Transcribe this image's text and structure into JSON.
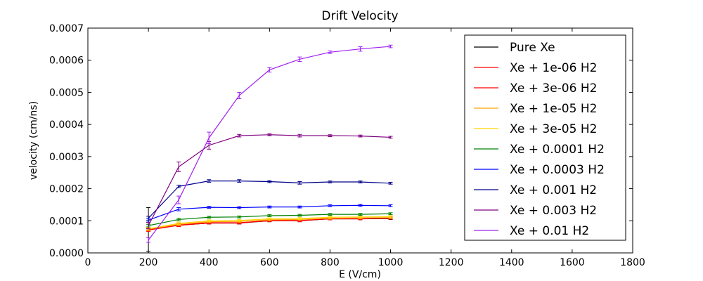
{
  "chart_data": {
    "type": "line",
    "title": "Drift Velocity",
    "xlabel": "E (V/cm)",
    "ylabel": "velocity (cm/ns)",
    "xlim": [
      0,
      1800
    ],
    "ylim": [
      0,
      0.0007
    ],
    "xticks": [
      "0",
      "200",
      "400",
      "600",
      "800",
      "1000",
      "1200",
      "1400",
      "1600",
      "1800"
    ],
    "yticks": [
      "0.0000",
      "0.0001",
      "0.0002",
      "0.0003",
      "0.0004",
      "0.0005",
      "0.0006",
      "0.0007"
    ],
    "grid": false,
    "legend_position": "upper-right",
    "x": [
      200,
      300,
      400,
      500,
      600,
      700,
      800,
      900,
      1000
    ],
    "series": [
      {
        "name": "Pure Xe",
        "color": "#000000",
        "values": [
          7.3e-05,
          8.6e-05,
          9.3e-05,
          9.3e-05,
          0.0001,
          0.0001,
          0.000106,
          0.000106,
          0.000107
        ],
        "errors": [
          6.8e-05,
          4e-06,
          3e-06,
          3e-06,
          3e-06,
          3e-06,
          3e-06,
          3e-06,
          3e-06
        ]
      },
      {
        "name": "Xe + 1e-06 H2",
        "color": "#ff0000",
        "values": [
          7.2e-05,
          8.7e-05,
          9.4e-05,
          9.4e-05,
          0.0001,
          0.0001,
          0.000107,
          0.000107,
          0.000108
        ],
        "errors": [
          4e-06,
          4e-06,
          3e-06,
          3e-06,
          3e-06,
          3e-06,
          3e-06,
          3e-06,
          3e-06
        ]
      },
      {
        "name": "Xe + 3e-06 H2",
        "color": "#ff0000",
        "values": [
          7.1e-05,
          8.6e-05,
          9.3e-05,
          9.3e-05,
          0.000101,
          0.000101,
          0.000106,
          0.000106,
          0.000109
        ],
        "errors": [
          4e-06,
          4e-06,
          3e-06,
          3e-06,
          3e-06,
          3e-06,
          3e-06,
          3e-06,
          3e-06
        ]
      },
      {
        "name": "Xe + 1e-05 H2",
        "color": "#ffa500",
        "values": [
          7.4e-05,
          8.9e-05,
          9.7e-05,
          9.8e-05,
          0.000103,
          0.000104,
          0.000108,
          0.000109,
          0.00011
        ],
        "errors": [
          4e-06,
          4e-06,
          3e-06,
          3e-06,
          3e-06,
          3e-06,
          3e-06,
          3e-06,
          3e-06
        ]
      },
      {
        "name": "Xe + 3e-05 H2",
        "color": "#ffd700",
        "values": [
          7.5e-05,
          9.2e-05,
          0.0001,
          0.000101,
          0.000106,
          0.000107,
          0.000111,
          0.000112,
          0.000113
        ],
        "errors": [
          4e-06,
          4e-06,
          3e-06,
          3e-06,
          3e-06,
          3e-06,
          3e-06,
          3e-06,
          3e-06
        ]
      },
      {
        "name": "Xe + 0.0001 H2",
        "color": "#008000",
        "values": [
          8.5e-05,
          0.000104,
          0.000111,
          0.000112,
          0.000116,
          0.000117,
          0.00012,
          0.00012,
          0.000122
        ],
        "errors": [
          4e-06,
          4e-06,
          3e-06,
          3e-06,
          3e-06,
          3e-06,
          3e-06,
          3e-06,
          3e-06
        ]
      },
      {
        "name": "Xe + 0.0003 H2",
        "color": "#0000ff",
        "values": [
          0.000102,
          0.000136,
          0.000142,
          0.000141,
          0.000143,
          0.000143,
          0.000147,
          0.000148,
          0.000147
        ],
        "errors": [
          6e-06,
          5e-06,
          3e-06,
          3e-06,
          3e-06,
          3e-06,
          3e-06,
          3e-06,
          3e-06
        ]
      },
      {
        "name": "Xe + 0.001 H2",
        "color": "#00008b",
        "values": [
          0.000108,
          0.000207,
          0.000224,
          0.000224,
          0.000222,
          0.000218,
          0.000221,
          0.000221,
          0.000217
        ],
        "errors": [
          6e-06,
          4e-06,
          4e-06,
          4e-06,
          3e-06,
          4e-06,
          3e-06,
          3e-06,
          3e-06
        ]
      },
      {
        "name": "Xe + 0.003 H2",
        "color": "#800080",
        "values": [
          8.5e-05,
          0.000268,
          0.000335,
          0.000365,
          0.000368,
          0.000365,
          0.000365,
          0.000364,
          0.00036
        ],
        "errors": [
          1e-05,
          1.5e-05,
          1.2e-05,
          4e-06,
          3e-06,
          4e-06,
          3e-06,
          3e-06,
          3e-06
        ]
      },
      {
        "name": "Xe + 0.01 H2",
        "color": "#a020f0",
        "values": [
          4e-05,
          0.000165,
          0.000358,
          0.00049,
          0.00057,
          0.000603,
          0.000625,
          0.000635,
          0.000643
        ],
        "errors": [
          7e-06,
          1.2e-05,
          1.8e-05,
          1e-05,
          7e-06,
          7e-06,
          4e-06,
          7e-06,
          4e-06
        ]
      }
    ]
  }
}
